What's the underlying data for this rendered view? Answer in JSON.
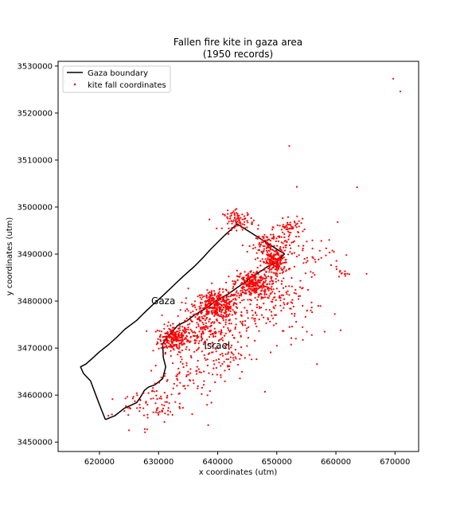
{
  "chart_data": {
    "type": "scatter",
    "title": "Fallen fire kite in gaza area",
    "subtitle": "(1950 records)",
    "xlabel": "x coordinates (utm)",
    "ylabel": "y coordinates (utm)",
    "xlim": [
      613000,
      674000
    ],
    "ylim": [
      3448000,
      3531000
    ],
    "x_ticks": [
      620000,
      630000,
      640000,
      650000,
      660000,
      670000
    ],
    "y_ticks": [
      3450000,
      3460000,
      3470000,
      3480000,
      3490000,
      3500000,
      3510000,
      3520000,
      3530000
    ],
    "x_tick_labels": [
      "620000",
      "630000",
      "640000",
      "650000",
      "660000",
      "670000"
    ],
    "y_tick_labels": [
      "3450000",
      "3460000",
      "3470000",
      "3480000",
      "3490000",
      "3500000",
      "3510000",
      "3520000",
      "3530000"
    ],
    "grid": false,
    "legend_position": "top-left",
    "series": [
      {
        "name": "Gaza boundary",
        "type": "line",
        "color": "#000000",
        "x": [
          621000,
          622600,
          624200,
          626300,
          627000,
          627600,
          628300,
          629400,
          630700,
          631200,
          630800,
          630700,
          631500,
          632500,
          633200,
          634800,
          635800,
          637000,
          638300,
          640000,
          641800,
          643200,
          644600,
          645800,
          647500,
          648500,
          649700,
          651300,
          643300,
          641200,
          638800,
          637500,
          636000,
          634200,
          632600,
          630600,
          629000,
          627500,
          626300,
          624300,
          623000,
          621500,
          620000,
          618700,
          617700,
          616800,
          617300,
          618500,
          619600,
          620300,
          621000
        ],
        "y": [
          3454800,
          3455600,
          3457200,
          3458400,
          3459700,
          3461000,
          3461700,
          3462200,
          3463500,
          3466000,
          3468000,
          3470900,
          3472400,
          3473700,
          3474800,
          3475800,
          3476800,
          3477700,
          3478700,
          3480300,
          3481500,
          3482800,
          3484000,
          3485200,
          3486500,
          3487400,
          3488000,
          3490000,
          3496400,
          3494000,
          3491000,
          3489200,
          3487300,
          3485300,
          3483400,
          3481000,
          3479200,
          3477400,
          3475900,
          3474000,
          3472400,
          3470700,
          3469200,
          3467700,
          3466600,
          3466000,
          3464600,
          3463000,
          3459300,
          3457000,
          3454800
        ]
      },
      {
        "name": "kite fall coordinates",
        "type": "scatter",
        "color": "#ff0000",
        "count": 1950,
        "clusters": [
          {
            "cx": 632500,
            "cy": 3472000,
            "sx": 1300,
            "sy": 1400,
            "n": 230
          },
          {
            "cx": 639800,
            "cy": 3479200,
            "sx": 1800,
            "sy": 1400,
            "n": 330
          },
          {
            "cx": 645800,
            "cy": 3483600,
            "sx": 1500,
            "sy": 1500,
            "n": 280
          },
          {
            "cx": 649700,
            "cy": 3488300,
            "sx": 1100,
            "sy": 1500,
            "n": 210
          },
          {
            "cx": 643500,
            "cy": 3497200,
            "sx": 1300,
            "sy": 1000,
            "n": 90
          },
          {
            "cx": 649000,
            "cy": 3492200,
            "sx": 2000,
            "sy": 1400,
            "n": 110
          },
          {
            "cx": 652400,
            "cy": 3495700,
            "sx": 1200,
            "sy": 800,
            "n": 50
          },
          {
            "cx": 637200,
            "cy": 3474200,
            "sx": 2200,
            "sy": 2200,
            "n": 160
          },
          {
            "cx": 649600,
            "cy": 3480300,
            "sx": 2200,
            "sy": 2200,
            "n": 85
          },
          {
            "cx": 640800,
            "cy": 3468800,
            "sx": 2200,
            "sy": 2800,
            "n": 95
          },
          {
            "cx": 629000,
            "cy": 3458000,
            "sx": 2600,
            "sy": 2200,
            "n": 75
          },
          {
            "cx": 634800,
            "cy": 3463600,
            "sx": 3000,
            "sy": 3000,
            "n": 70
          },
          {
            "cx": 644500,
            "cy": 3476800,
            "sx": 2800,
            "sy": 2800,
            "n": 85
          },
          {
            "cx": 656000,
            "cy": 3489300,
            "sx": 2600,
            "sy": 2400,
            "n": 45
          },
          {
            "cx": 661200,
            "cy": 3486000,
            "sx": 800,
            "sy": 500,
            "n": 10
          },
          {
            "cx": 653500,
            "cy": 3477200,
            "sx": 3000,
            "sy": 3400,
            "n": 25
          }
        ],
        "outliers": [
          [
            669700,
            3527300
          ],
          [
            670900,
            3524600
          ],
          [
            652100,
            3513000
          ],
          [
            653400,
            3504300
          ],
          [
            663600,
            3504200
          ],
          [
            660300,
            3496800
          ],
          [
            665200,
            3485800
          ],
          [
            650000,
            3470500
          ],
          [
            656800,
            3466600
          ],
          [
            638400,
            3453600
          ],
          [
            625000,
            3452500
          ],
          [
            621500,
            3455600
          ],
          [
            622100,
            3455900
          ],
          [
            627700,
            3452100
          ],
          [
            660800,
            3473800
          ],
          [
            658100,
            3473500
          ],
          [
            655100,
            3473500
          ],
          [
            648000,
            3460700
          ]
        ]
      }
    ],
    "annotations": [
      {
        "text": "Gaza",
        "x": 630800,
        "y": 3480000
      },
      {
        "text": "Israel",
        "x": 639900,
        "y": 3470500
      }
    ]
  }
}
